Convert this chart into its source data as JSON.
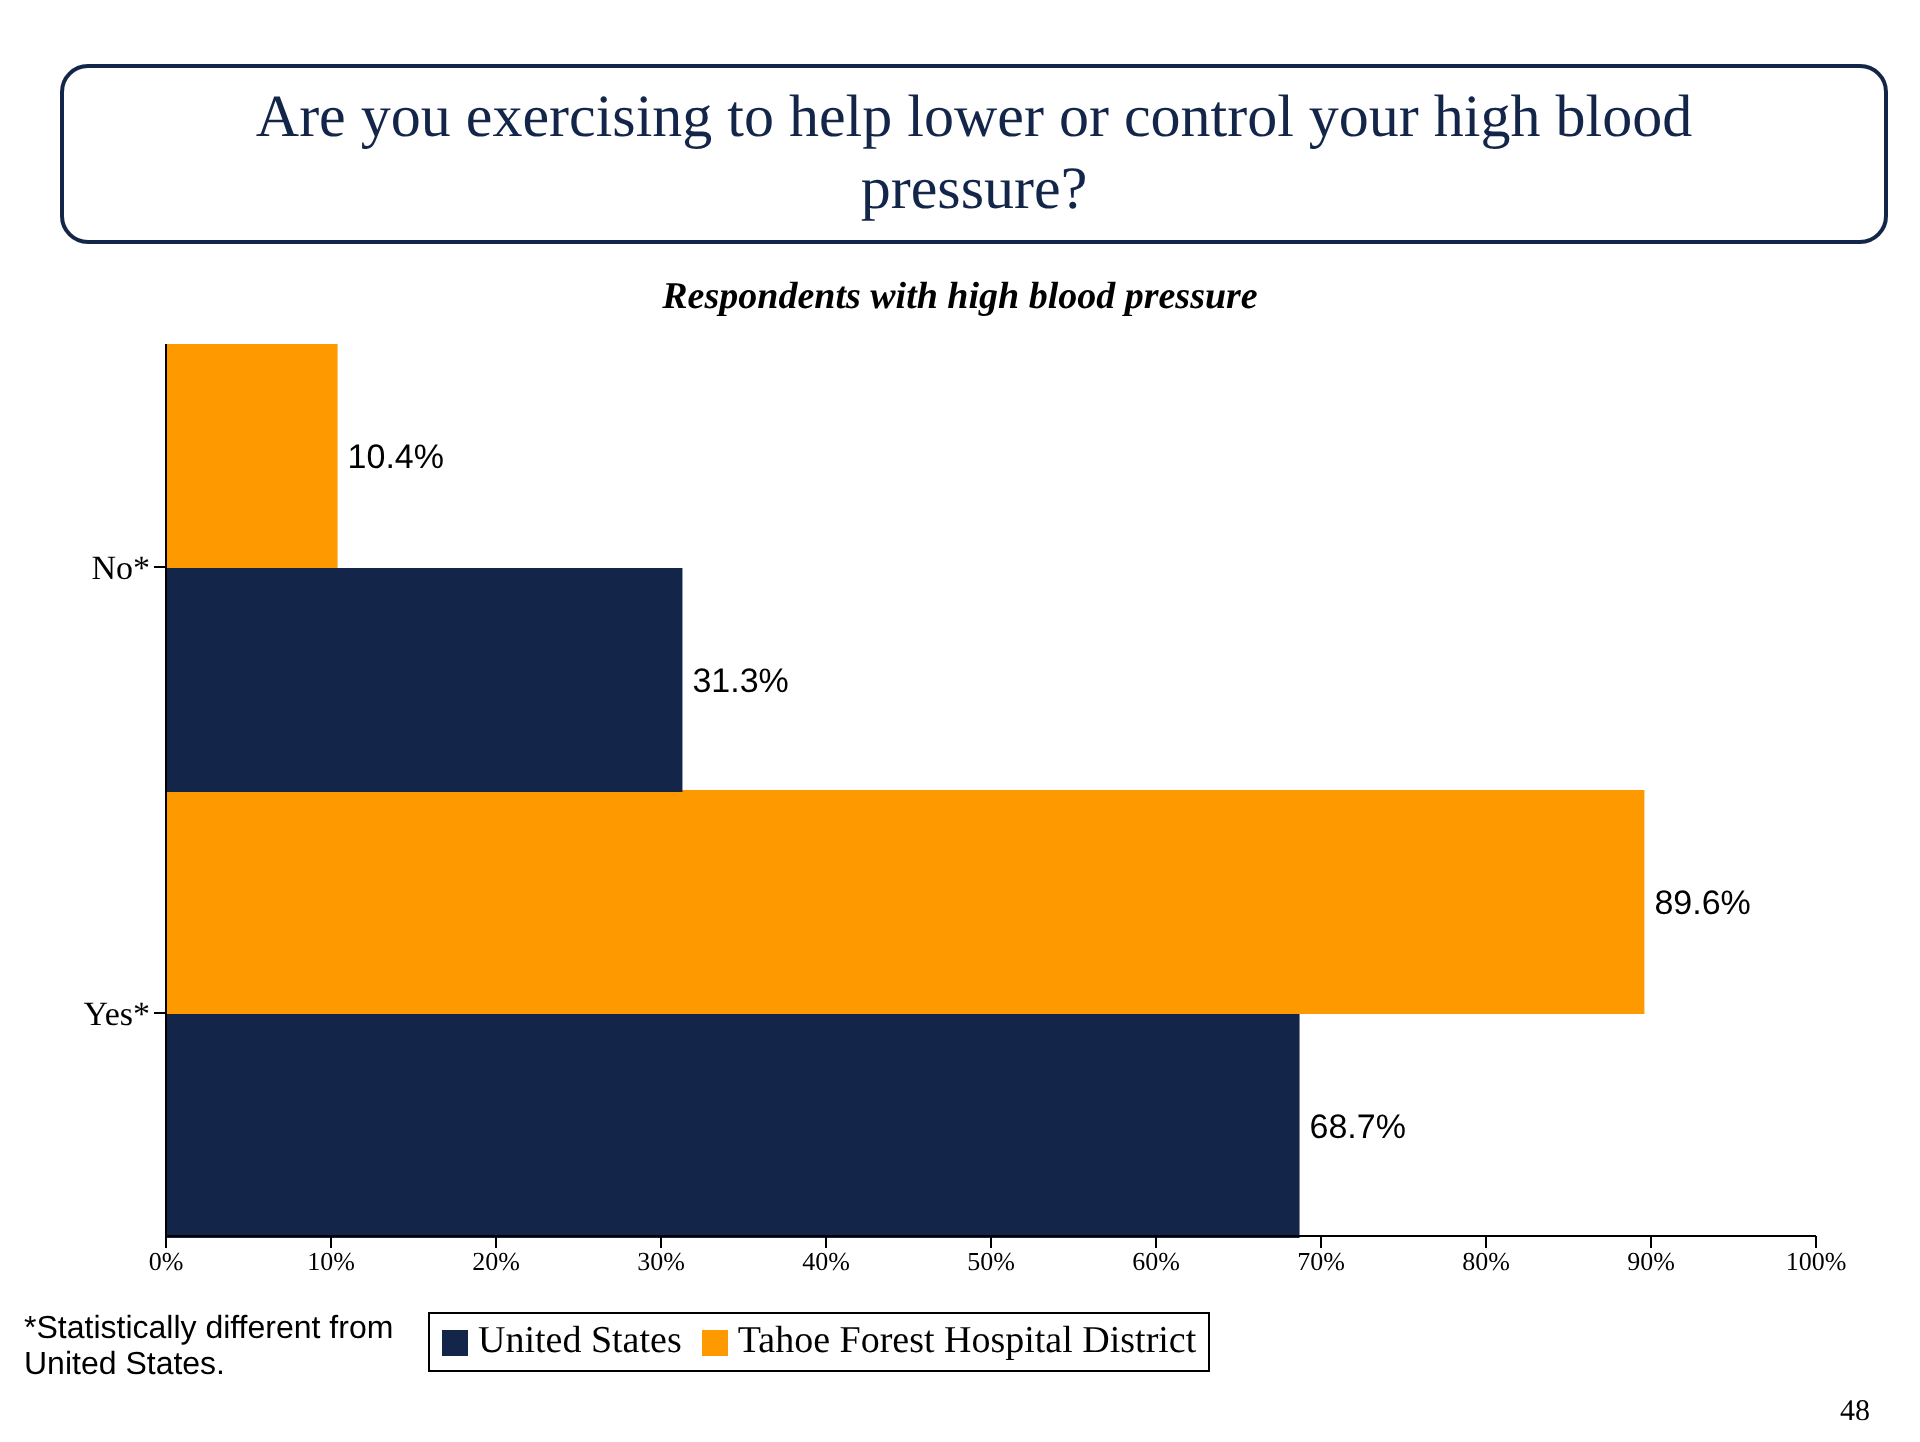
{
  "chart_data": {
    "type": "bar",
    "orientation": "horizontal",
    "title": "Are you exercising to help lower or control your high blood pressure?",
    "subtitle": "Respondents with high blood pressure",
    "categories": [
      "No*",
      "Yes*"
    ],
    "series": [
      {
        "name": "United States",
        "color": "#13264a",
        "values": [
          31.3,
          68.7
        ],
        "value_labels": [
          "31.3%",
          "68.7%"
        ]
      },
      {
        "name": "Tahoe Forest Hospital District",
        "color": "#ff9900",
        "values": [
          10.4,
          89.6
        ],
        "value_labels": [
          "10.4%",
          "89.6%"
        ]
      }
    ],
    "xlim": [
      0,
      100
    ],
    "xticks": [
      {
        "value": 0,
        "label": "0%"
      },
      {
        "value": 10,
        "label": "10%"
      },
      {
        "value": 20,
        "label": "20%"
      },
      {
        "value": 30,
        "label": "30%"
      },
      {
        "value": 40,
        "label": "40%"
      },
      {
        "value": 50,
        "label": "50%"
      },
      {
        "value": 60,
        "label": "60%"
      },
      {
        "value": 70,
        "label": "70%"
      },
      {
        "value": 80,
        "label": "80%"
      },
      {
        "value": 90,
        "label": "90%"
      },
      {
        "value": 100,
        "label": "100%"
      }
    ],
    "grid": false,
    "legend": "bottom",
    "annotations": [
      "*Statistically different from United States.",
      "48"
    ]
  }
}
